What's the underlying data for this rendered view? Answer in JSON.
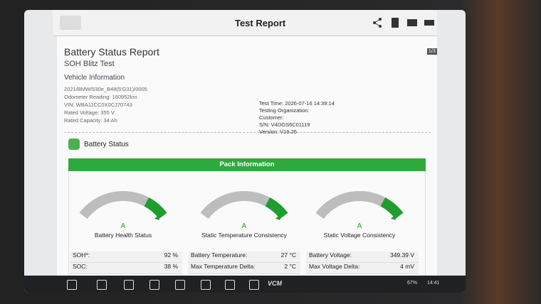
{
  "header": {
    "title": "Test Report",
    "page": "1/3"
  },
  "report": {
    "title": "Battery Status Report",
    "subtitle": "SOH Blitz Test"
  },
  "vehicle": {
    "heading": "Vehicle Information",
    "lines": [
      "2021/BMW/530e_B48(5'G31)/0005",
      "Odometer Reading: 160952km",
      "VIN: WBA11CC0X0CJ70743",
      "Rated Voltage: 355 V",
      "Rated Capacity: 34 Ah"
    ]
  },
  "test": {
    "lines": [
      "Test Time: 2026-07-16 14:39:14",
      "Testing Organization:",
      "Customer:",
      "S/N: V4DGS6C01119",
      "Version: V19.25"
    ]
  },
  "section": {
    "title": "Battery Status",
    "pack": "Pack Information"
  },
  "gauges": [
    {
      "grade": "A",
      "label": "Battery Health Status"
    },
    {
      "grade": "A",
      "label": "Static Temperature Consistency"
    },
    {
      "grade": "A",
      "label": "Static Voltage Consistency"
    }
  ],
  "table": {
    "columns": [
      [
        [
          "SOH*:",
          "92 %"
        ],
        [
          "SOC:",
          "38 %"
        ]
      ],
      [
        [
          "Battery Temperature:",
          "27 °C"
        ],
        [
          "Max Temperature Delta:",
          "2 °C"
        ]
      ],
      [
        [
          "Battery Voltage:",
          "349.39 V"
        ],
        [
          "Max Voltage Delta:",
          "4 mV"
        ]
      ]
    ]
  },
  "statusbar": {
    "app": "VCM",
    "battery": "67%",
    "time": "14:41"
  }
}
